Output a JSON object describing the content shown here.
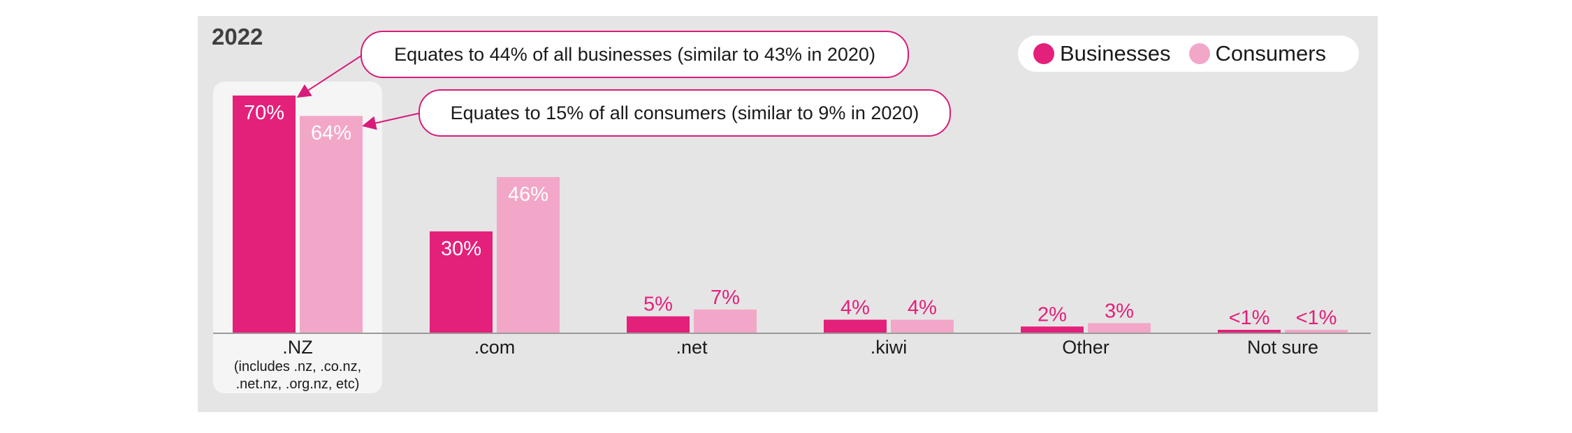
{
  "year_label": "2022",
  "colors": {
    "businesses": "#e3207a",
    "consumers": "#f2a7c9",
    "panel": "#e5e5e5",
    "highlight": "#f5f5f5"
  },
  "legend": [
    {
      "label": "Businesses",
      "color": "#e3207a"
    },
    {
      "label": "Consumers",
      "color": "#f2a7c9"
    }
  ],
  "callouts": [
    {
      "text": "Equates to 44% of all businesses (similar to 43% in 2020)"
    },
    {
      "text": "Equates to 15% of all consumers (similar to 9% in 2020)"
    }
  ],
  "chart_data": {
    "type": "bar",
    "categories": [
      ".NZ",
      ".com",
      ".net",
      ".kiwi",
      "Other",
      "Not sure"
    ],
    "category_sublabels": [
      "(includes .nz, .co.nz,",
      ".net.nz, .org.nz, etc)"
    ],
    "series": [
      {
        "name": "Businesses",
        "values": [
          70,
          30,
          5,
          4,
          2,
          1
        ],
        "labels": [
          "70%",
          "30%",
          "5%",
          "4%",
          "2%",
          "<1%"
        ]
      },
      {
        "name": "Consumers",
        "values": [
          64,
          46,
          7,
          4,
          3,
          1
        ],
        "labels": [
          "64%",
          "46%",
          "7%",
          "4%",
          "3%",
          "<1%"
        ]
      }
    ],
    "ylim": [
      0,
      70
    ],
    "highlighted_category": ".NZ",
    "grid": false,
    "legend_position": "top-right"
  }
}
